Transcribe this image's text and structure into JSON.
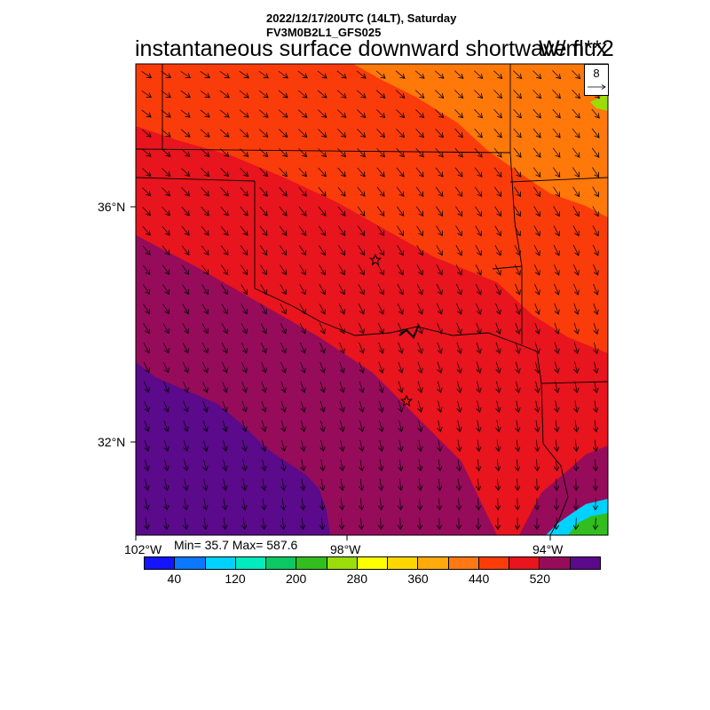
{
  "header": {
    "datetime": "2022/12/17/20UTC (14LT), Saturday",
    "model": "FV3M0B2L1_GFS025",
    "title": "instantaneous surface downward shortwave flux",
    "units": "W/m**2"
  },
  "map": {
    "lat_labels": [
      "36°N",
      "32°N"
    ],
    "lon_labels": [
      "102°W",
      "98°W",
      "94°W"
    ],
    "stats": "Min= 35.7 Max= 587.6",
    "markers": [
      "star",
      "star"
    ],
    "field_colors": {
      "dark_purple": "#5a0a8a",
      "maroon": "#960c5a",
      "red": "#e8141e",
      "orange_red": "#fa3c0a",
      "orange": "#ff780a"
    }
  },
  "vector_reference": {
    "magnitude": "8"
  },
  "colorbar": {
    "colors": [
      "#1414ff",
      "#0a78ff",
      "#00d2ff",
      "#00ebbe",
      "#0ac864",
      "#32be1e",
      "#9bdc0a",
      "#ffff00",
      "#ffd700",
      "#ffaa0a",
      "#ff7814",
      "#fa3c0a",
      "#e8141e",
      "#960c5a",
      "#5a0a8a"
    ],
    "labels": [
      "40",
      "120",
      "200",
      "280",
      "360",
      "440",
      "520"
    ]
  }
}
